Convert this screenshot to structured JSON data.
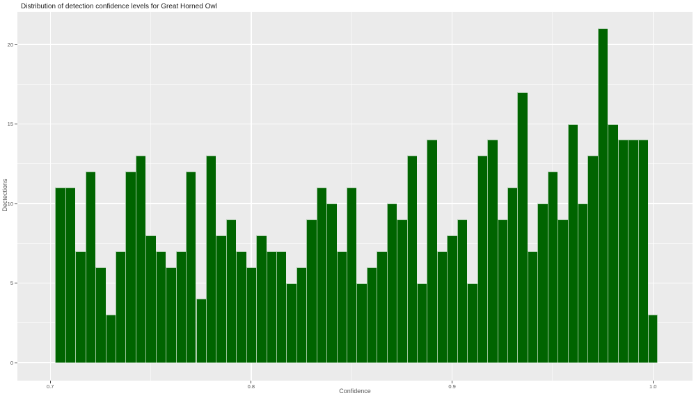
{
  "title": "Distribution of detection confidence levels for Great Horned Owl",
  "chart_data": {
    "type": "bar",
    "subtype": "histogram",
    "title": "Distribution of detection confidence levels for Great Horned Owl",
    "xlabel": "Confidence",
    "ylabel": "Dectections",
    "legend": null,
    "grid": "on",
    "panel_bg": "#ebebeb",
    "grid_major_color": "#ffffff",
    "grid_minor_color": "rgba(255,255,255,0.55)",
    "bar_color": "#006400",
    "bar_edge_color": "#9fc69f",
    "text_color": "#555555",
    "title_color": "#1a1a1a",
    "xlim": [
      0.68365,
      1.01965
    ],
    "ylim": [
      -1.135,
      22.056
    ],
    "bin_width": 0.005,
    "x_major_ticks": [
      0.7,
      0.8,
      0.9,
      1.0
    ],
    "x_tick_labels": [
      "0.7",
      "0.8",
      "0.9",
      "1.0"
    ],
    "x_minor_gridlines": [
      0.75,
      0.85,
      0.95
    ],
    "y_major_ticks": [
      0,
      5,
      10,
      15,
      20
    ],
    "y_tick_labels": [
      "0",
      "5",
      "10",
      "15",
      "20"
    ],
    "y_minor_gridlines": [
      2.5,
      7.5,
      12.5,
      17.5
    ],
    "bin_centers": [
      0.705,
      0.71,
      0.715,
      0.72,
      0.725,
      0.73,
      0.735,
      0.74,
      0.745,
      0.75,
      0.755,
      0.76,
      0.765,
      0.77,
      0.775,
      0.78,
      0.785,
      0.79,
      0.795,
      0.8,
      0.805,
      0.81,
      0.815,
      0.82,
      0.825,
      0.83,
      0.835,
      0.84,
      0.845,
      0.85,
      0.855,
      0.86,
      0.865,
      0.87,
      0.875,
      0.88,
      0.885,
      0.89,
      0.895,
      0.9,
      0.905,
      0.91,
      0.915,
      0.92,
      0.925,
      0.93,
      0.935,
      0.94,
      0.945,
      0.95,
      0.955,
      0.96,
      0.965,
      0.97,
      0.975,
      0.98,
      0.985,
      0.99,
      0.995,
      1.0
    ],
    "counts": [
      11,
      11,
      7,
      12,
      6,
      3,
      7,
      12,
      13,
      8,
      7,
      6,
      7,
      12,
      4,
      13,
      8,
      9,
      7,
      6,
      8,
      7,
      7,
      5,
      6,
      9,
      11,
      10,
      7,
      11,
      5,
      6,
      7,
      10,
      9,
      13,
      5,
      14,
      7,
      8,
      9,
      5,
      13,
      14,
      9,
      11,
      17,
      7,
      10,
      12,
      9,
      15,
      10,
      13,
      21,
      15,
      14,
      14,
      14,
      3
    ]
  }
}
